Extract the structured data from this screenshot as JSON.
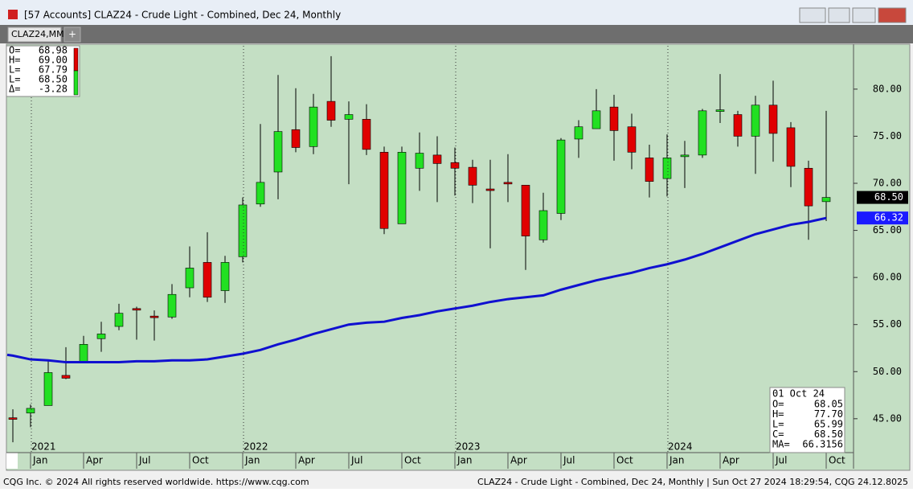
{
  "window": {
    "title": "[57 Accounts]  CLAZ24 - Crude Light - Combined, Dec 24, Monthly",
    "tab": "CLAZ24,MM",
    "tab_add": "+",
    "footer_left": "CQG Inc. © 2024 All rights reserved worldwide. https://www.cqg.com",
    "footer_right": "CLAZ24 - Crude Light - Combined, Dec 24, Monthly | Sun Oct 27 2024 18:29:54, CQG 24.12.8025"
  },
  "cursor_panel": [
    [
      "O=",
      "68.98"
    ],
    [
      "H=",
      "69.00"
    ],
    [
      "L=",
      "67.79"
    ],
    [
      "L=",
      "68.50"
    ],
    [
      "Δ=",
      "-3.28"
    ]
  ],
  "bar_panel": {
    "date": "01 Oct 24",
    "rows": [
      [
        "O=",
        "68.05"
      ],
      [
        "H=",
        "77.70"
      ],
      [
        "L=",
        "65.99"
      ],
      [
        "C=",
        "68.50"
      ],
      [
        "MA=",
        "66.3156"
      ]
    ]
  },
  "chart_data": {
    "type": "candlestick",
    "x": [
      "2020-12",
      "2021-01",
      "2021-02",
      "2021-03",
      "2021-04",
      "2021-05",
      "2021-06",
      "2021-07",
      "2021-08",
      "2021-09",
      "2021-10",
      "2021-11",
      "2021-12",
      "2022-01",
      "2022-02",
      "2022-03",
      "2022-04",
      "2022-05",
      "2022-06",
      "2022-07",
      "2022-08",
      "2022-09",
      "2022-10",
      "2022-11",
      "2022-12",
      "2023-01",
      "2023-02",
      "2023-03",
      "2023-04",
      "2023-05",
      "2023-06",
      "2023-07",
      "2023-08",
      "2023-09",
      "2023-10",
      "2023-11",
      "2023-12",
      "2024-01",
      "2024-02",
      "2024-03",
      "2024-04",
      "2024-05",
      "2024-06",
      "2024-07",
      "2024-08",
      "2024-09",
      "2024-10"
    ],
    "open": [
      45.1,
      45.6,
      46.4,
      49.6,
      51.0,
      53.5,
      54.8,
      56.7,
      55.9,
      55.8,
      58.9,
      61.6,
      58.6,
      62.2,
      67.8,
      71.2,
      75.7,
      73.9,
      78.7,
      76.8,
      76.8,
      73.3,
      65.7,
      71.6,
      73.0,
      72.2,
      71.7,
      69.4,
      70.1,
      69.8,
      64.0,
      66.8,
      74.7,
      75.8,
      78.1,
      76.0,
      72.7,
      70.5,
      72.9,
      73.0,
      77.7,
      77.3,
      75.0,
      78.3,
      75.9,
      71.6,
      68.05
    ],
    "high": [
      46.0,
      46.5,
      51.1,
      52.6,
      53.8,
      55.3,
      57.2,
      56.9,
      56.5,
      59.3,
      63.3,
      64.8,
      62.3,
      68.5,
      76.3,
      81.5,
      80.1,
      79.5,
      83.5,
      78.7,
      78.4,
      73.9,
      73.9,
      75.4,
      75.0,
      73.8,
      72.5,
      72.5,
      73.1,
      69.8,
      69.0,
      74.8,
      76.7,
      80.0,
      79.4,
      77.4,
      74.1,
      75.2,
      74.5,
      77.9,
      81.6,
      77.7,
      79.3,
      80.9,
      76.5,
      72.4,
      77.7
    ],
    "low": [
      42.5,
      44.1,
      46.4,
      49.2,
      50.9,
      52.1,
      54.4,
      53.4,
      53.3,
      55.6,
      57.9,
      57.4,
      57.3,
      61.6,
      67.5,
      68.3,
      73.3,
      73.1,
      76.0,
      69.9,
      73.0,
      64.6,
      65.7,
      69.2,
      68.0,
      68.7,
      67.9,
      63.1,
      68.0,
      60.8,
      63.7,
      66.1,
      72.7,
      75.8,
      72.4,
      71.5,
      68.5,
      68.6,
      69.5,
      72.7,
      76.4,
      73.9,
      71.0,
      72.3,
      69.6,
      64.0,
      65.99
    ],
    "close": [
      45.0,
      46.1,
      49.9,
      49.3,
      52.9,
      54.0,
      56.2,
      56.6,
      55.8,
      58.2,
      61.0,
      57.9,
      61.6,
      67.7,
      70.1,
      75.5,
      73.8,
      78.1,
      76.7,
      77.3,
      73.6,
      65.2,
      73.3,
      73.2,
      72.1,
      71.6,
      69.8,
      69.3,
      70.0,
      64.4,
      67.1,
      74.6,
      76.0,
      77.7,
      75.6,
      73.3,
      70.2,
      72.7,
      73.0,
      77.7,
      77.8,
      75.0,
      78.3,
      75.3,
      71.8,
      67.6,
      68.5
    ],
    "up_color": "#22e022",
    "down_color": "#e00000",
    "ma": {
      "color": "#1010d0",
      "values": [
        51.7,
        51.3,
        51.2,
        51.0,
        51.0,
        51.0,
        51.0,
        51.1,
        51.1,
        51.2,
        51.2,
        51.3,
        51.6,
        51.9,
        52.3,
        52.9,
        53.4,
        54.0,
        54.5,
        55.0,
        55.2,
        55.3,
        55.7,
        56.0,
        56.4,
        56.7,
        57.0,
        57.4,
        57.7,
        57.9,
        58.1,
        58.7,
        59.2,
        59.7,
        60.1,
        60.5,
        61.0,
        61.4,
        61.9,
        62.5,
        63.2,
        63.9,
        64.6,
        65.1,
        65.6,
        65.9,
        66.3156
      ]
    },
    "last_close_label": "68.50",
    "last_ma_label": "66.32",
    "ylim": [
      41.4,
      84.6
    ],
    "yticks": [
      {
        "value": 45,
        "label": "45.00"
      },
      {
        "value": 50,
        "label": "50.00"
      },
      {
        "value": 55,
        "label": "55.00"
      },
      {
        "value": 60,
        "label": "60.00"
      },
      {
        "value": 65,
        "label": "65.00"
      },
      {
        "value": 70,
        "label": "70.00"
      },
      {
        "value": 75,
        "label": "75.00"
      },
      {
        "value": 80,
        "label": "80.00"
      }
    ],
    "month_ticks": [
      {
        "value": "2021-01",
        "label": "Jan"
      },
      {
        "value": "2021-04",
        "label": "Apr"
      },
      {
        "value": "2021-07",
        "label": "Jul"
      },
      {
        "value": "2021-10",
        "label": "Oct"
      },
      {
        "value": "2022-01",
        "label": "Jan"
      },
      {
        "value": "2022-04",
        "label": "Apr"
      },
      {
        "value": "2022-07",
        "label": "Jul"
      },
      {
        "value": "2022-10",
        "label": "Oct"
      },
      {
        "value": "2023-01",
        "label": "Jan"
      },
      {
        "value": "2023-04",
        "label": "Apr"
      },
      {
        "value": "2023-07",
        "label": "Jul"
      },
      {
        "value": "2023-10",
        "label": "Oct"
      },
      {
        "value": "2024-01",
        "label": "Jan"
      },
      {
        "value": "2024-04",
        "label": "Apr"
      },
      {
        "value": "2024-07",
        "label": "Jul"
      },
      {
        "value": "2024-10",
        "label": "Oct"
      }
    ],
    "year_ticks": [
      {
        "value": "2021-01",
        "label": "2021"
      },
      {
        "value": "2022-01",
        "label": "2022"
      },
      {
        "value": "2023-01",
        "label": "2023"
      },
      {
        "value": "2024-01",
        "label": "2024"
      }
    ]
  }
}
